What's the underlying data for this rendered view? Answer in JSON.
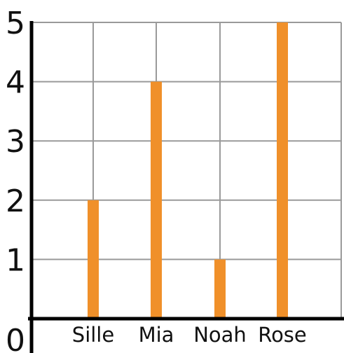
{
  "chart_data": {
    "type": "bar",
    "categories": [
      "Sille",
      "Mia",
      "Noah",
      "Rose"
    ],
    "values": [
      2,
      4,
      1,
      5
    ],
    "y_ticks": [
      "0",
      "1",
      "2",
      "3",
      "4",
      "5"
    ],
    "ylim": [
      0,
      5
    ],
    "grid": true,
    "bar_color": "#F0902A",
    "axis_color": "#000000",
    "grid_color": "#9a9a9a"
  }
}
